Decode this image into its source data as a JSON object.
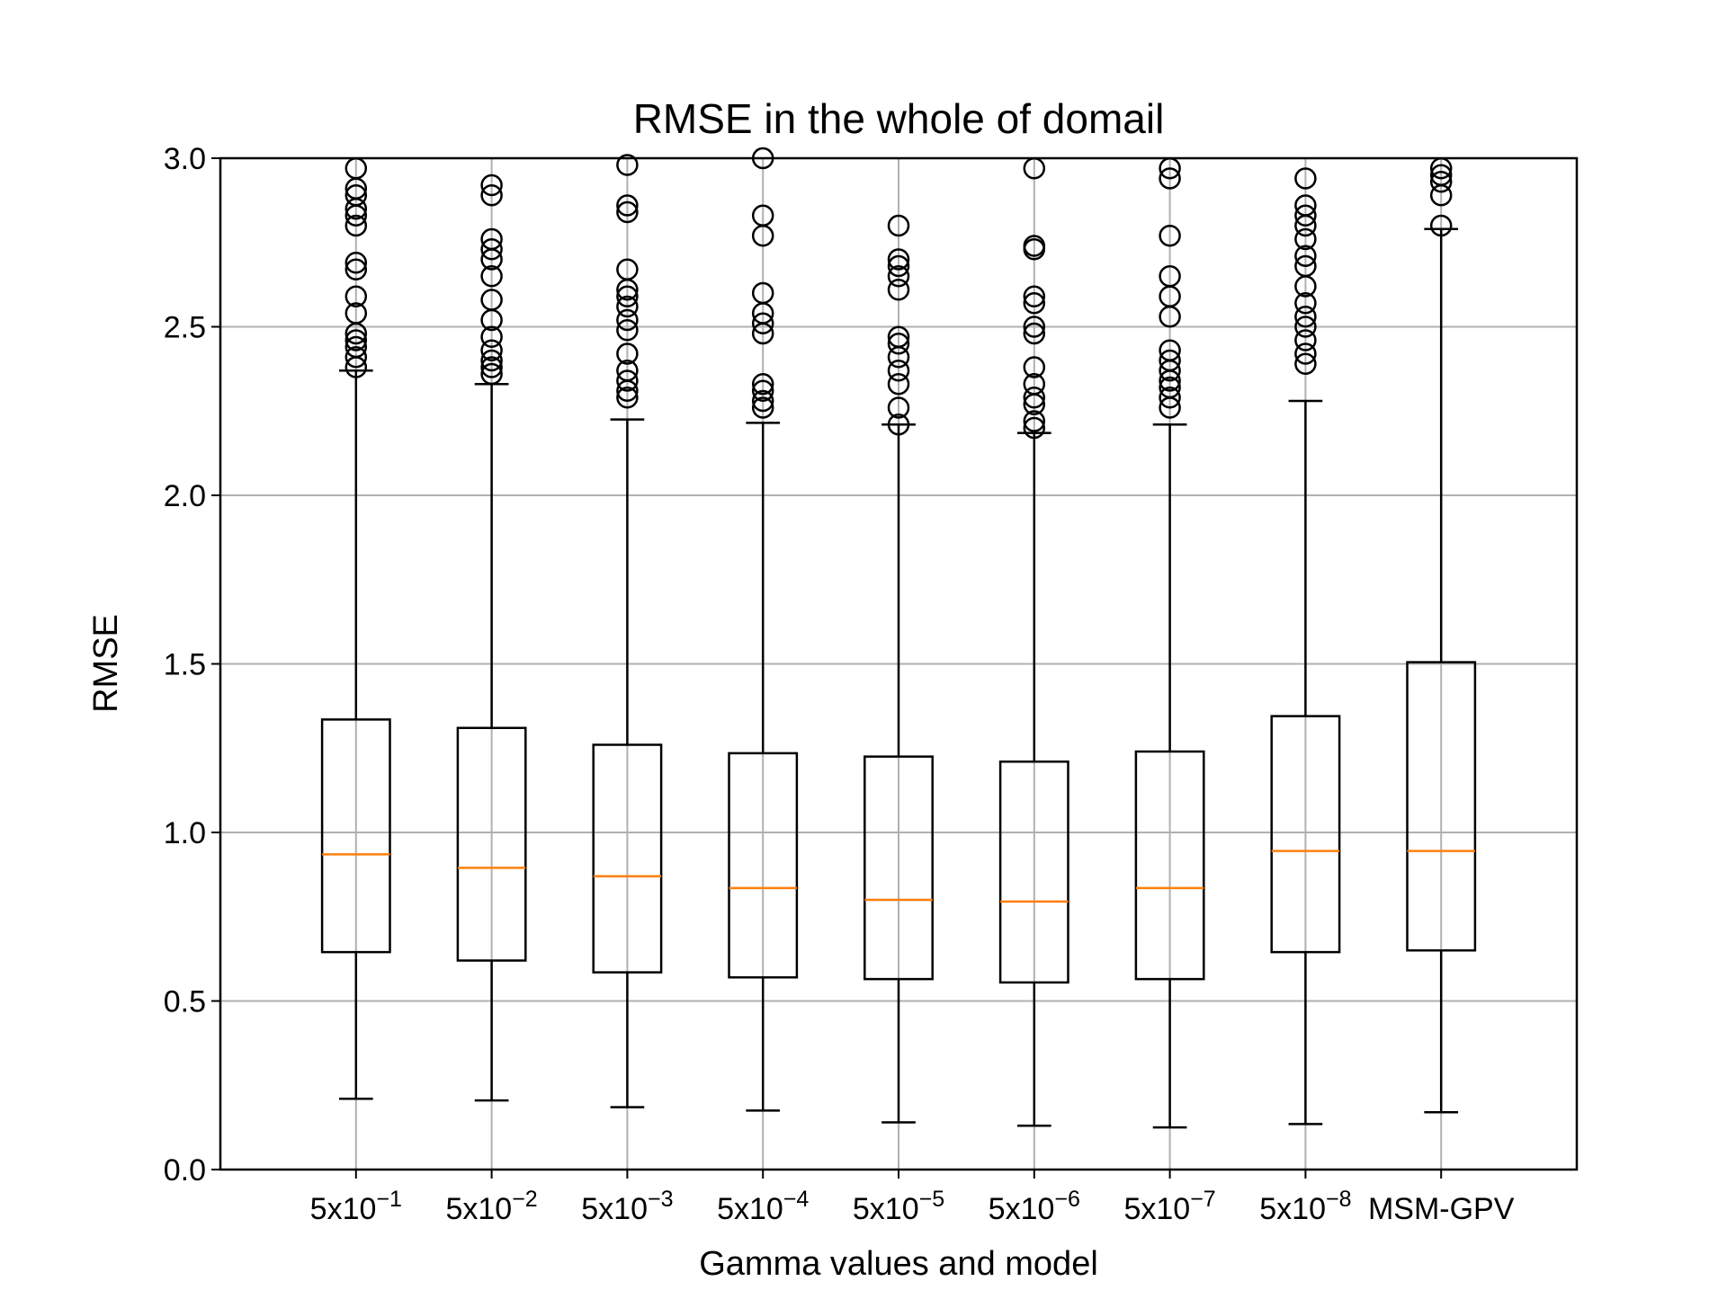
{
  "chart_data": {
    "type": "boxplot",
    "title": "RMSE in the whole of domail",
    "xlabel": "Gamma values and model",
    "ylabel": "RMSE",
    "ylim": [
      0.0,
      3.0
    ],
    "yticks": [
      "0.0",
      "0.5",
      "1.0",
      "1.5",
      "2.0",
      "2.5",
      "3.0"
    ],
    "grid": true,
    "median_color": "#ff7f0e",
    "box_color": "#000000",
    "categories": [
      {
        "base": "5x10",
        "exp": "−1"
      },
      {
        "base": "5x10",
        "exp": "−2"
      },
      {
        "base": "5x10",
        "exp": "−3"
      },
      {
        "base": "5x10",
        "exp": "−4"
      },
      {
        "base": "5x10",
        "exp": "−5"
      },
      {
        "base": "5x10",
        "exp": "−6"
      },
      {
        "base": "5x10",
        "exp": "−7"
      },
      {
        "base": "5x10",
        "exp": "−8"
      },
      {
        "base": "MSM-GPV",
        "exp": ""
      }
    ],
    "boxes": [
      {
        "whislo": 0.21,
        "q1": 0.645,
        "med": 0.935,
        "q3": 1.335,
        "whishi": 2.37,
        "fliers": [
          2.38,
          2.41,
          2.44,
          2.46,
          2.48,
          2.54,
          2.59,
          2.67,
          2.69,
          2.8,
          2.83,
          2.85,
          2.89,
          2.91,
          2.97
        ]
      },
      {
        "whislo": 0.205,
        "q1": 0.62,
        "med": 0.895,
        "q3": 1.31,
        "whishi": 2.33,
        "fliers": [
          2.36,
          2.38,
          2.4,
          2.43,
          2.47,
          2.52,
          2.58,
          2.65,
          2.7,
          2.73,
          2.76,
          2.89,
          2.92
        ]
      },
      {
        "whislo": 0.185,
        "q1": 0.585,
        "med": 0.87,
        "q3": 1.26,
        "whishi": 2.225,
        "fliers": [
          2.29,
          2.31,
          2.34,
          2.37,
          2.42,
          2.49,
          2.52,
          2.56,
          2.59,
          2.61,
          2.67,
          2.84,
          2.86,
          2.98
        ]
      },
      {
        "whislo": 0.175,
        "q1": 0.57,
        "med": 0.835,
        "q3": 1.235,
        "whishi": 2.215,
        "fliers": [
          2.26,
          2.28,
          2.31,
          2.33,
          2.48,
          2.51,
          2.54,
          2.6,
          2.77,
          2.83,
          3.0
        ]
      },
      {
        "whislo": 0.14,
        "q1": 0.565,
        "med": 0.8,
        "q3": 1.225,
        "whishi": 2.21,
        "fliers": [
          2.21,
          2.26,
          2.33,
          2.37,
          2.41,
          2.45,
          2.47,
          2.61,
          2.65,
          2.68,
          2.7,
          2.8
        ]
      },
      {
        "whislo": 0.13,
        "q1": 0.555,
        "med": 0.795,
        "q3": 1.21,
        "whishi": 2.185,
        "fliers": [
          2.2,
          2.22,
          2.27,
          2.29,
          2.33,
          2.38,
          2.48,
          2.5,
          2.57,
          2.59,
          2.73,
          2.74,
          2.97
        ]
      },
      {
        "whislo": 0.125,
        "q1": 0.565,
        "med": 0.835,
        "q3": 1.24,
        "whishi": 2.21,
        "fliers": [
          2.26,
          2.29,
          2.32,
          2.34,
          2.37,
          2.4,
          2.43,
          2.53,
          2.59,
          2.65,
          2.77,
          2.94,
          2.97
        ]
      },
      {
        "whislo": 0.135,
        "q1": 0.645,
        "med": 0.945,
        "q3": 1.345,
        "whishi": 2.28,
        "fliers": [
          2.39,
          2.42,
          2.46,
          2.5,
          2.53,
          2.57,
          2.62,
          2.68,
          2.71,
          2.76,
          2.8,
          2.83,
          2.86,
          2.94
        ]
      },
      {
        "whislo": 0.17,
        "q1": 0.65,
        "med": 0.945,
        "q3": 1.505,
        "whishi": 2.79,
        "fliers": [
          2.8,
          2.89,
          2.93,
          2.95,
          2.97
        ]
      }
    ]
  }
}
